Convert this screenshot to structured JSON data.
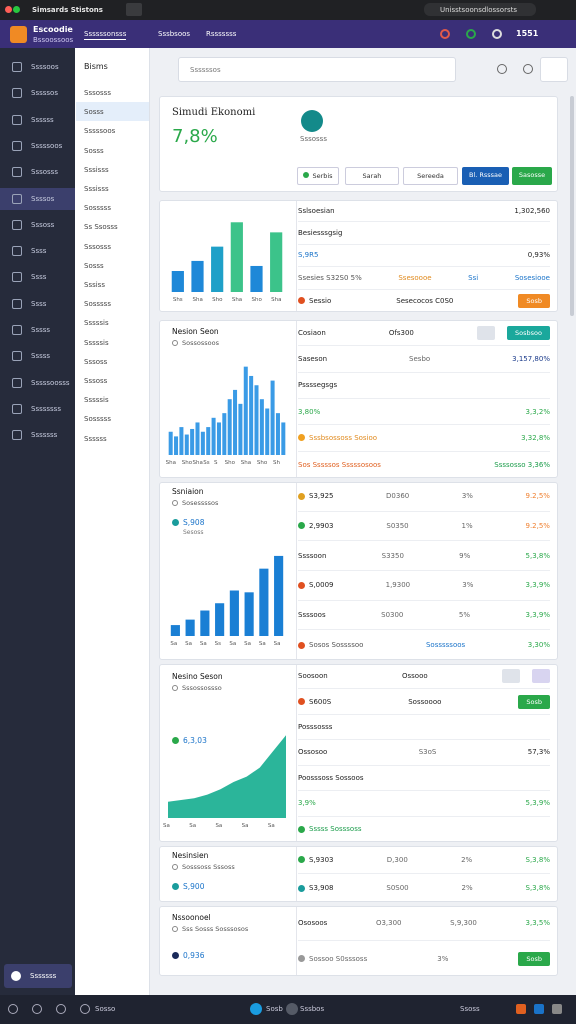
{
  "browser": {
    "tab": "Simsards Stistons",
    "url": "Unisstsoonsdlossorsts"
  },
  "header": {
    "brand": "Escoodie",
    "brand_sub": "Bssoossoos",
    "nav": [
      "Ssssssonsss",
      "Sssbsoos",
      "Rsssssss"
    ],
    "time": "1551"
  },
  "icon_sidebar": {
    "items": [
      "Ssssoos",
      "Sssssos",
      "Ssssss",
      "Sssssoos",
      "Sssosss",
      "Ssssos",
      "Sssoss",
      "Ssss",
      "Ssss",
      "Ssss",
      "Sssss",
      "Sssss",
      "Sssssoosss",
      "Ssssssss",
      "Sssssss"
    ],
    "active": 5,
    "footer": "Sssssss"
  },
  "nav_sidebar": {
    "title": "Bisms",
    "items": [
      "Sssosss",
      "Sosss",
      "Sssssoos",
      "Sosss",
      "Sssisss",
      "Sssisss",
      "Sosssss",
      "Ss Ssosss",
      "Sssosss",
      "Sosss",
      "Sssiss",
      "Sosssss",
      "Sssssis",
      "Sssssis",
      "Sssoss",
      "Sssoss",
      "Sssssis",
      "Sosssss",
      "Ssssss"
    ],
    "active": 1
  },
  "search": "Ssssssos",
  "summary": {
    "title": "Simudi Ekonomi",
    "value": "7,8%",
    "sub": "Sssosss",
    "buttons": [
      {
        "label": "Serbis",
        "dot": "#2aa84a"
      },
      {
        "label": "Sarah"
      },
      {
        "label": "Sereeda"
      },
      {
        "label": "Bl. Rsssae",
        "color": "#1a5fb4"
      },
      {
        "label": "Sasosse",
        "color": "#2aa84a"
      }
    ]
  },
  "panels": [
    {
      "chart": {
        "type": "bar",
        "ylim": [
          0,
          100
        ],
        "values": [
          25,
          37,
          54,
          83,
          31,
          71
        ],
        "colors": [
          "#1e88d8",
          "#1e88d8",
          "#1fa0c8",
          "#3cc38a",
          "#1e88d8",
          "#3cc38a"
        ],
        "categories": [
          "Shs",
          "Sha",
          "Sho",
          "Sha",
          "Sho",
          "Sha"
        ]
      },
      "rows": [
        {
          "cells": [
            "Sslsoesian",
            "1,302,560"
          ]
        },
        {
          "cells": [
            "Besiesssgsig"
          ]
        },
        {
          "cells": [
            "S,9R5",
            "0,93%"
          ],
          "colors": [
            "#1a73c9",
            "#222222"
          ]
        },
        {
          "cells": [
            "Ssesies S32S0 5%",
            "Ssesoooe",
            "Ssi",
            "Sosesiooe"
          ],
          "colors": [
            "#555555",
            "#e08a1e",
            "#1a73c9",
            "#1a73c9"
          ]
        },
        {
          "dot": "#e05020",
          "cells": [
            "Sessio",
            "Sesecocos C0S0"
          ],
          "buttons": [
            {
              "label": "Sosb",
              "color": "#f08a24"
            }
          ]
        }
      ]
    },
    {
      "title": "Nesion Seon",
      "sub": "Sossossoos",
      "chart": {
        "type": "bar",
        "ylim": [
          0,
          100
        ],
        "color": "#3a9be6",
        "values": [
          25,
          20,
          30,
          22,
          28,
          35,
          25,
          30,
          40,
          35,
          45,
          60,
          70,
          55,
          95,
          85,
          75,
          60,
          50,
          80,
          45,
          35
        ],
        "categories": [
          "Sha",
          null,
          null,
          "Sho",
          null,
          "Sha",
          null,
          "Ss",
          null,
          "S",
          null,
          "Sho",
          null,
          null,
          "Sha",
          null,
          null,
          "Sho",
          null,
          null,
          "Sh",
          null
        ]
      },
      "rows": [
        {
          "cells": [
            "Cosiaon",
            "Ofs300"
          ],
          "buttons": [
            {
              "color": "#dfe3ea"
            },
            {
              "label": "Sosbsoo",
              "color": "#1aa89c"
            }
          ]
        },
        {
          "cells": [
            "Saseson",
            "Sesbo",
            "3,157,80%"
          ],
          "colors": [
            "#222222",
            "#666666",
            "#1a3a8a"
          ]
        },
        {
          "cells": [
            "Pssssegsgs"
          ]
        },
        {
          "cells": [
            "3,80%",
            "3,3,2%"
          ],
          "colors": [
            "#2aa84a",
            "#2aa84a"
          ]
        },
        {
          "dot": "#f0a020",
          "cells": [
            "Sssbsossoss Sosioo",
            "3,32,8%"
          ],
          "colors": [
            "#e08a1e",
            "#2aa84a"
          ]
        },
        {
          "cells": [
            "Sos Sssssos Sssssosoos",
            "Ssssosso 3,36%"
          ],
          "colors": [
            "#e06020",
            "#1a9c4a"
          ]
        }
      ]
    },
    {
      "title": "Ssniaion",
      "sub": "Sosessssos",
      "value": "S,908",
      "value_sub": "Sesoss",
      "value_dot": "#1a9c9c",
      "chart": {
        "type": "bar",
        "ylim": [
          0,
          100
        ],
        "color": "#1a7fd4",
        "values": [
          12,
          18,
          28,
          36,
          50,
          48,
          74,
          88
        ],
        "categories": [
          "Sa",
          "Sa",
          "Sa",
          "Ss",
          "Sa",
          "Sa",
          "Sa",
          "Sa"
        ]
      },
      "rows": [
        {
          "dot": "#e0a020",
          "cells": [
            "S3,925",
            "D0360",
            "3%",
            "9.2,5%"
          ],
          "colors": [
            "#222222",
            "#666666",
            "#666666",
            "#f08030"
          ]
        },
        {
          "dot": "#2aa84a",
          "cells": [
            "2,9903",
            "S0350",
            "1%",
            "9.2,5%"
          ],
          "colors": [
            "#222222",
            "#666666",
            "#666666",
            "#f08030"
          ]
        },
        {
          "cells": [
            "Ssssoon",
            "S3350",
            "9%",
            "5,3,8%"
          ],
          "colors": [
            "#222222",
            "#666666",
            "#666666",
            "#2aa84a"
          ]
        },
        {
          "dot": "#e05020",
          "cells": [
            "S,0009",
            "1,9300",
            "3%",
            "3,3,9%"
          ],
          "colors": [
            "#222222",
            "#666666",
            "#666666",
            "#2aa84a"
          ]
        },
        {
          "cells": [
            "Ssssoos",
            "S0300",
            "5%",
            "3,3,9%"
          ],
          "colors": [
            "#222222",
            "#666666",
            "#666666",
            "#2aa84a"
          ]
        },
        {
          "dot": "#e05020",
          "cells": [
            "Sosos Sossssoo",
            "Sosssssoos",
            "3,30%"
          ],
          "colors": [
            "#555555",
            "#1a73c9",
            "#2aa84a"
          ]
        }
      ]
    },
    {
      "title": "Nesino Seson",
      "sub": "Sssossossso",
      "value": "6,3,03",
      "value_dot": "#2aa84a",
      "chart": {
        "type": "area",
        "ylim": [
          0,
          100
        ],
        "color": "#2bb59a",
        "values": [
          18,
          20,
          22,
          26,
          32,
          40,
          46,
          56,
          74,
          92
        ],
        "categories": [
          "Sa",
          null,
          "Sa",
          null,
          "Sa",
          null,
          "Sa",
          null,
          "Sa",
          null
        ]
      },
      "rows": [
        {
          "cells": [
            "Soosoon",
            "Ossooo"
          ],
          "buttons": [
            {
              "color": "#dfe3ea"
            },
            {
              "color": "#d8d4f0"
            }
          ]
        },
        {
          "dot": "#e05020",
          "cells": [
            "S600S",
            "Sossoooo"
          ],
          "buttons": [
            {
              "label": "Sosb",
              "color": "#2aa84a"
            }
          ]
        },
        {
          "cells": [
            "Posssosss"
          ]
        },
        {
          "cells": [
            "Ossosoo",
            "S3oS",
            "57,3%"
          ],
          "colors": [
            "#222222",
            "#666666",
            "#222222"
          ]
        },
        {
          "cells": [
            "Poosssoss Sossoos"
          ]
        },
        {
          "cells": [
            "3,9%",
            "5,3,9%"
          ],
          "colors": [
            "#2aa84a",
            "#2aa84a"
          ]
        },
        {
          "dot": "#2aa84a",
          "cells": [
            "Sssss Sosssoss"
          ],
          "colors": [
            "#1a9c4a"
          ]
        }
      ]
    },
    {
      "title": "Nesinsien",
      "sub": "Sosssoss Sssoss",
      "value": "S,900",
      "value_dot": "#1a9c9c",
      "rows": [
        {
          "dot": "#2aa84a",
          "cells": [
            "S,9303",
            "D,300",
            "2%",
            "S,3,8%"
          ],
          "colors": [
            "#222222",
            "#666666",
            "#666666",
            "#2aa84a"
          ]
        },
        {
          "dot": "#1a9c9c",
          "cells": [
            "S3,908",
            "S0S00",
            "2%",
            "S,3,8%"
          ],
          "colors": [
            "#222222",
            "#666666",
            "#666666",
            "#2aa84a"
          ]
        }
      ]
    },
    {
      "title": "Nssoonoel",
      "sub": "Sss Sosss Sosssosos",
      "value": "0,936",
      "value_dot": "#1a2a5a",
      "rows": [
        {
          "cells": [
            "Ososoos",
            "O3,300",
            "S,9,300",
            "3,3,5%"
          ],
          "colors": [
            "#222222",
            "#666666",
            "#666666",
            "#2aa84a"
          ]
        },
        {
          "dot": "#999999",
          "cells": [
            "Sossoo S0sssoss",
            "3%"
          ],
          "colors": [
            "#666666",
            "#666666"
          ],
          "buttons": [
            {
              "label": "Sosb",
              "color": "#2aa84a"
            }
          ]
        }
      ]
    }
  ],
  "taskbar": [
    "Sosso",
    "Sosb",
    "Sssbos",
    "Ssoss"
  ]
}
